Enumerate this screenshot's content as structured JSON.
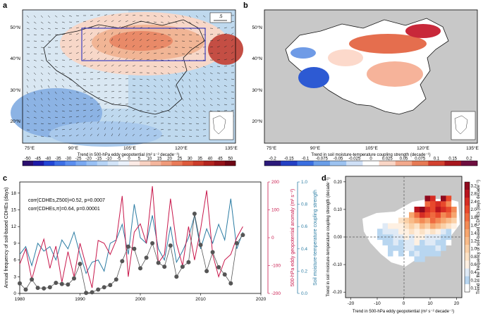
{
  "panels": {
    "a": {
      "label": "a",
      "lat_ticks": [
        "50°N",
        "40°N",
        "30°N",
        "20°N"
      ],
      "lon_ticks": [
        "75°E",
        "90°E",
        "105°E",
        "120°E",
        "135°E"
      ],
      "vector_key": ".5",
      "colorbar_title": "Trend in 500-hPa eddy geopotential (m² s⁻² decade⁻¹)",
      "colorbar_ticks": [
        "-50",
        "-45",
        "-40",
        "-35",
        "-30",
        "-25",
        "-20",
        "-15",
        "-10",
        "-5",
        "0",
        "5",
        "10",
        "15",
        "20",
        "25",
        "30",
        "35",
        "40",
        "45",
        "50"
      ]
    },
    "b": {
      "label": "b",
      "lat_ticks": [
        "50°N",
        "40°N",
        "30°N",
        "20°N"
      ],
      "lon_ticks": [
        "75°E",
        "90°E",
        "105°E",
        "120°E",
        "135°E"
      ],
      "colorbar_title": "Trend in soil moisture-temperature coupling strength (decade⁻¹)",
      "colorbar_ticks": [
        "-0.2",
        "-0.15",
        "-0.1",
        "-0.075",
        "-0.05",
        "-0.025",
        "0",
        "0.025",
        "0.05",
        "0.075",
        "0.1",
        "0.15",
        "0.2"
      ]
    },
    "c": {
      "label": "c",
      "ylabel_left": "Annual frequency of soil-based CDHEs (days)",
      "ylabel_mid": "500-hPa eddy geopotential anomaly (m² s⁻²)",
      "ylabel_right": "Soil moisture-temperature coupling strength",
      "annotation1": "corr(CDHEs,Z500)=0.52, p=0.0007",
      "annotation2": "corr(CDHEs,π)=0.64, p=0.00001"
    },
    "d": {
      "label": "d",
      "xlabel": "Trend in 500-hPa eddy geopotential (m² s⁻² decade⁻¹)",
      "ylabel": "Trend in soil moisture-temperature coupling strength (decade⁻¹)",
      "colorbar_label": "Trend in the frequency of soil-based CDHEs (days decade⁻¹)",
      "xticks": [
        "-20",
        "-10",
        "0",
        "10",
        "20"
      ],
      "yticks": [
        "0.20",
        "0.10",
        "0.00",
        "-0.10",
        "-0.20"
      ],
      "colorbar_ticks": [
        "3.2",
        "2.8",
        "2.4",
        "2.0",
        "1.8",
        "1.6",
        "1.4",
        "1.2",
        "1.0",
        "0.8",
        "0.6",
        "0.4",
        "0.2",
        "0.1"
      ]
    }
  },
  "chart_data": [
    {
      "type": "line",
      "panel": "c",
      "x": [
        1980,
        1981,
        1982,
        1983,
        1984,
        1985,
        1986,
        1987,
        1988,
        1989,
        1990,
        1991,
        1992,
        1993,
        1994,
        1995,
        1996,
        1997,
        1998,
        1999,
        2000,
        2001,
        2002,
        2003,
        2004,
        2005,
        2006,
        2007,
        2008,
        2009,
        2010,
        2011,
        2012,
        2013,
        2014,
        2015,
        2016,
        2017
      ],
      "xticks": [
        1980,
        1990,
        2000,
        2010,
        2020
      ],
      "xlim": [
        1980,
        2020
      ],
      "series": [
        {
          "axis": "left",
          "color": "#555555",
          "ylim": [
            0,
            20
          ],
          "yticks": [
            0,
            3,
            6,
            9,
            12,
            15,
            18
          ],
          "values": [
            1.8,
            0.7,
            2.5,
            1.0,
            0.9,
            1.1,
            1.9,
            1.7,
            1.6,
            2.7,
            5.3,
            0.1,
            0.2,
            0.7,
            1.1,
            1.5,
            2.5,
            5.8,
            8.4,
            8.0,
            4.5,
            6.4,
            9.0,
            5.5,
            4.8,
            8.6,
            3.0,
            4.8,
            5.6,
            14.3,
            8.7,
            4.0,
            7.4,
            4.7,
            3.4,
            1.8,
            9.0,
            10.5
          ]
        },
        {
          "axis": "middle",
          "color": "#c8174b",
          "ylim": [
            -200,
            200
          ],
          "yticks": [
            -200,
            -100,
            0,
            100,
            200
          ],
          "values": [
            -95,
            -40,
            -150,
            -70,
            -5,
            -110,
            -30,
            -160,
            -50,
            -140,
            -20,
            -100,
            -180,
            -10,
            -20,
            -60,
            -10,
            150,
            -140,
            20,
            50,
            -20,
            185,
            -90,
            -60,
            140,
            -20,
            -100,
            40,
            -80,
            30,
            170,
            -60,
            -140,
            -80,
            -60,
            0,
            40
          ]
        },
        {
          "axis": "right",
          "color": "#2b7ca3",
          "ylim": [
            0,
            1.0
          ],
          "yticks": [
            0.0,
            0.2,
            0.4,
            0.6,
            0.8,
            1.0
          ],
          "values": [
            0.35,
            0.42,
            0.25,
            0.45,
            0.38,
            0.42,
            0.3,
            0.48,
            0.4,
            0.55,
            0.35,
            0.18,
            0.28,
            0.3,
            0.2,
            0.45,
            0.48,
            0.62,
            0.35,
            0.8,
            0.5,
            0.45,
            0.7,
            0.4,
            0.3,
            0.6,
            0.28,
            0.38,
            0.5,
            0.7,
            0.4,
            0.58,
            0.45,
            0.62,
            0.48,
            0.85,
            0.4,
            0.55
          ]
        }
      ]
    },
    {
      "type": "heatmap",
      "panel": "d",
      "xlim": [
        -22,
        22
      ],
      "ylim": [
        -0.22,
        0.22
      ],
      "cell_values": [
        [
          5,
          -0.08,
          0.3
        ],
        [
          7,
          -0.08,
          -0.4
        ],
        [
          -5,
          -0.06,
          0.2
        ],
        [
          -3,
          -0.06,
          0.1
        ],
        [
          -1,
          -0.06,
          0.2
        ],
        [
          1,
          -0.06,
          0.1
        ],
        [
          3,
          -0.06,
          0.3
        ],
        [
          5,
          -0.06,
          0.4
        ],
        [
          7,
          -0.06,
          0.2
        ],
        [
          9,
          -0.06,
          0.3
        ],
        [
          11,
          -0.06,
          0.2
        ],
        [
          13,
          -0.06,
          0.3
        ],
        [
          -5,
          -0.04,
          0.2
        ],
        [
          -3,
          -0.04,
          0.3
        ],
        [
          -1,
          -0.04,
          0.2
        ],
        [
          1,
          -0.04,
          0.4
        ],
        [
          3,
          -0.04,
          0.5
        ],
        [
          5,
          -0.04,
          0.3
        ],
        [
          7,
          -0.04,
          0.2
        ],
        [
          9,
          -0.04,
          0.3
        ],
        [
          11,
          -0.04,
          0.2
        ],
        [
          13,
          -0.04,
          0.4
        ],
        [
          15,
          -0.04,
          0.2
        ],
        [
          -7,
          -0.02,
          0.2
        ],
        [
          -5,
          -0.02,
          0.3
        ],
        [
          -3,
          -0.02,
          0.4
        ],
        [
          -1,
          -0.02,
          0.3
        ],
        [
          1,
          -0.02,
          0.5
        ],
        [
          3,
          -0.02,
          0.4
        ],
        [
          5,
          -0.02,
          0.6
        ],
        [
          7,
          -0.02,
          0.3
        ],
        [
          9,
          -0.02,
          0.4
        ],
        [
          11,
          -0.02,
          0.5
        ],
        [
          13,
          -0.02,
          0.3
        ],
        [
          15,
          -0.02,
          0.2
        ],
        [
          17,
          -0.02,
          0.1
        ],
        [
          -9,
          0.0,
          0.2
        ],
        [
          -7,
          0.0,
          0.3
        ],
        [
          -5,
          0.0,
          0.3
        ],
        [
          -3,
          0.0,
          0.4
        ],
        [
          -1,
          0.0,
          0.5
        ],
        [
          1,
          0.0,
          0.6
        ],
        [
          3,
          0.0,
          0.5
        ],
        [
          5,
          0.0,
          0.7
        ],
        [
          7,
          0.0,
          0.6
        ],
        [
          9,
          0.0,
          0.5
        ],
        [
          11,
          0.0,
          0.4
        ],
        [
          13,
          0.0,
          0.5
        ],
        [
          15,
          0.0,
          0.3
        ],
        [
          17,
          0.0,
          0.2
        ],
        [
          -9,
          0.02,
          0.3
        ],
        [
          -7,
          0.02,
          0.4
        ],
        [
          -5,
          0.02,
          0.5
        ],
        [
          -3,
          0.02,
          0.4
        ],
        [
          -1,
          0.02,
          0.6
        ],
        [
          1,
          0.02,
          0.7
        ],
        [
          3,
          0.02,
          0.8
        ],
        [
          5,
          0.02,
          0.6
        ],
        [
          7,
          0.02,
          0.9
        ],
        [
          9,
          0.02,
          0.7
        ],
        [
          11,
          0.02,
          0.8
        ],
        [
          13,
          0.02,
          0.6
        ],
        [
          15,
          0.02,
          0.5
        ],
        [
          17,
          0.02,
          0.3
        ],
        [
          -7,
          0.04,
          0.5
        ],
        [
          -5,
          0.04,
          0.6
        ],
        [
          -3,
          0.04,
          0.7
        ],
        [
          -1,
          0.04,
          0.6
        ],
        [
          1,
          0.04,
          0.8
        ],
        [
          3,
          0.04,
          1.0
        ],
        [
          5,
          0.04,
          0.9
        ],
        [
          7,
          0.04,
          1.2
        ],
        [
          9,
          0.04,
          1.0
        ],
        [
          11,
          0.04,
          1.4
        ],
        [
          13,
          0.04,
          1.2
        ],
        [
          15,
          0.04,
          1.0
        ],
        [
          17,
          0.04,
          0.8
        ],
        [
          19,
          0.04,
          0.6
        ],
        [
          -1,
          0.06,
          0.8
        ],
        [
          1,
          0.06,
          1.0
        ],
        [
          3,
          0.06,
          1.2
        ],
        [
          5,
          0.06,
          1.4
        ],
        [
          7,
          0.06,
          1.6
        ],
        [
          9,
          0.06,
          1.4
        ],
        [
          11,
          0.06,
          1.8
        ],
        [
          13,
          0.06,
          1.6
        ],
        [
          15,
          0.06,
          1.4
        ],
        [
          17,
          0.06,
          1.2
        ],
        [
          19,
          0.06,
          1.0
        ],
        [
          3,
          0.08,
          1.4
        ],
        [
          5,
          0.08,
          1.8
        ],
        [
          7,
          0.08,
          2.4
        ],
        [
          9,
          0.08,
          2.0
        ],
        [
          11,
          0.08,
          1.8
        ],
        [
          13,
          0.08,
          2.0
        ],
        [
          15,
          0.08,
          1.6
        ],
        [
          17,
          0.08,
          1.8
        ],
        [
          19,
          0.08,
          1.4
        ],
        [
          5,
          0.1,
          2.8
        ],
        [
          7,
          0.1,
          3.2
        ],
        [
          9,
          0.1,
          2.4
        ],
        [
          11,
          0.1,
          2.0
        ],
        [
          13,
          0.1,
          2.8
        ],
        [
          15,
          0.1,
          2.4
        ],
        [
          17,
          0.1,
          2.0
        ],
        [
          19,
          0.1,
          1.6
        ],
        [
          9,
          0.12,
          1.8
        ],
        [
          11,
          0.12,
          2.0
        ],
        [
          13,
          0.12,
          2.4
        ],
        [
          15,
          0.12,
          2.0
        ],
        [
          17,
          0.12,
          1.6
        ],
        [
          9,
          0.14,
          3.2
        ],
        [
          11,
          0.14,
          2.4
        ],
        [
          15,
          0.14,
          3.2
        ],
        [
          17,
          0.14,
          2.0
        ]
      ]
    }
  ],
  "colors": {
    "cbar_a": [
      "#2b0f6f",
      "#1d1aa8",
      "#2245d6",
      "#3d6fe6",
      "#5b8ef0",
      "#7aa9f2",
      "#98c0f5",
      "#b6d4f7",
      "#d2e4f9",
      "#ebf2fc",
      "#fcebe6",
      "#f9d2c2",
      "#f5b69d",
      "#f09a7a",
      "#e97a58",
      "#de5a3c",
      "#cc3c2a",
      "#b3241f",
      "#951319",
      "#6f0715"
    ],
    "cbar_b": [
      "#2b1a7a",
      "#2440c4",
      "#3a6fe0",
      "#6a9ee8",
      "#9cc2f0",
      "#cfe0f7",
      "#ffffff",
      "#fad6c6",
      "#f3a98c",
      "#e77a55",
      "#d3412f",
      "#a8171e",
      "#6e0e3f"
    ],
    "cbar_d": [
      "#8f0a1e",
      "#b8141e",
      "#d62d24",
      "#e8492c",
      "#ef6a3f",
      "#f38a55",
      "#f6a66f",
      "#f8bb89",
      "#fad0a7",
      "#fce2c6",
      "#fef0e2",
      "#dfeaf6",
      "#b8d6f0",
      "#ffffff"
    ],
    "line_left": "#555555",
    "line_mid": "#c8174b",
    "line_right": "#2b7ca3"
  }
}
